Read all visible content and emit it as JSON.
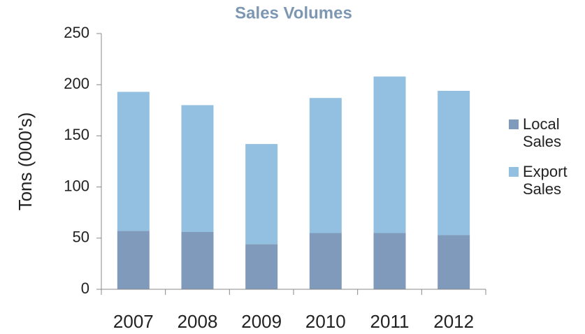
{
  "chart_data": {
    "type": "stacked_bar",
    "title": "Sales Volumes",
    "y_label": "Tons (000's)",
    "categories": [
      "2007",
      "2008",
      "2009",
      "2010",
      "2011",
      "2012"
    ],
    "series": [
      {
        "name": "Local Sales",
        "color": "#7f9aba",
        "values": [
          57,
          56,
          44,
          55,
          55,
          53
        ]
      },
      {
        "name": "Export Sales",
        "color": "#93c0e0",
        "values": [
          136,
          124,
          98,
          132,
          153,
          141
        ]
      }
    ],
    "ylim": [
      0,
      250
    ],
    "yticks": [
      0,
      50,
      100,
      150,
      200,
      250
    ],
    "legend": "right"
  }
}
